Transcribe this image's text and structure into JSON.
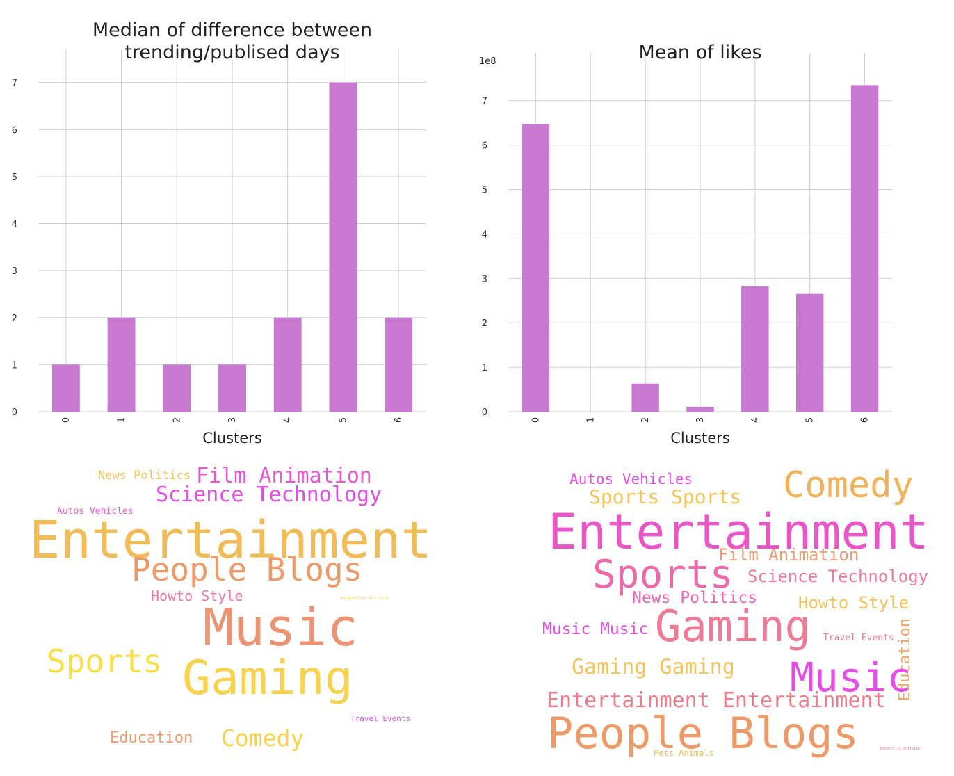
{
  "chart_data": [
    {
      "type": "bar",
      "title": "Median of difference between\ntrending/publised days",
      "xlabel": "Clusters",
      "ylabel": "",
      "categories": [
        "0",
        "1",
        "2",
        "3",
        "4",
        "5",
        "6"
      ],
      "values": [
        1,
        2,
        1,
        1,
        2,
        7,
        2
      ],
      "ylim": [
        0,
        7.35
      ],
      "yticks": [
        0,
        1,
        2,
        3,
        4,
        5,
        6,
        7
      ],
      "offset_label": "",
      "bar_color": "#c879d1",
      "grid": true
    },
    {
      "type": "bar",
      "title": "Mean of likes",
      "xlabel": "Clusters",
      "ylabel": "",
      "categories": [
        "0",
        "1",
        "2",
        "3",
        "4",
        "5",
        "6"
      ],
      "values": [
        6.47,
        0,
        0.63,
        0.11,
        2.82,
        2.65,
        7.35
      ],
      "ylim": [
        0,
        7.7
      ],
      "yticks": [
        0,
        1,
        2,
        3,
        4,
        5,
        6,
        7
      ],
      "offset_label": "1e8",
      "bar_color": "#c879d1",
      "grid": true
    }
  ],
  "wordclouds": [
    {
      "words": [
        {
          "text": "News Politics",
          "color": "#f6c25a"
        },
        {
          "text": "Film Animation",
          "color": "#e55ad3"
        },
        {
          "text": "Science Technology",
          "color": "#e64de6"
        },
        {
          "text": "Autos Vehicles",
          "color": "#ea5fd0"
        },
        {
          "text": "Entertainment",
          "color": "#f1bb55"
        },
        {
          "text": "People Blogs",
          "color": "#ee9a68"
        },
        {
          "text": "Howto Style",
          "color": "#ef7aa0"
        },
        {
          "text": "Nonprofits Activism",
          "color": "#f6cf4a"
        },
        {
          "text": "Music",
          "color": "#ed9371"
        },
        {
          "text": "Sports",
          "color": "#f8e04b"
        },
        {
          "text": "Gaming",
          "color": "#f8d24d"
        },
        {
          "text": "Travel Events",
          "color": "#e64de6"
        },
        {
          "text": "Education",
          "color": "#ef9a71"
        },
        {
          "text": "Comedy",
          "color": "#f8d24d"
        }
      ]
    },
    {
      "words": [
        {
          "text": "Autos Vehicles",
          "color": "#e64de6"
        },
        {
          "text": "Comedy",
          "color": "#f1b25a"
        },
        {
          "text": "Sports Sports",
          "color": "#f6c25a"
        },
        {
          "text": "Entertainment",
          "color": "#ea55c8"
        },
        {
          "text": "Film Animation",
          "color": "#ef9a71"
        },
        {
          "text": "Sports",
          "color": "#ec6aa8"
        },
        {
          "text": "Science Technology",
          "color": "#ef7a9a"
        },
        {
          "text": "News Politics",
          "color": "#ef66b4"
        },
        {
          "text": "Howto Style",
          "color": "#f6c25a"
        },
        {
          "text": "Music Music",
          "color": "#e64de6"
        },
        {
          "text": "Gaming",
          "color": "#ef7a96"
        },
        {
          "text": "Travel Events",
          "color": "#ef7a9a"
        },
        {
          "text": "Education",
          "color": "#f1a866"
        },
        {
          "text": "Gaming Gaming",
          "color": "#f6c25a"
        },
        {
          "text": "Music",
          "color": "#e64de6"
        },
        {
          "text": "Entertainment Entertainment",
          "color": "#ef7a88"
        },
        {
          "text": "People Blogs",
          "color": "#ee9a68"
        },
        {
          "text": "Pets Animals",
          "color": "#f1c25a"
        },
        {
          "text": "Nonprofits Activism",
          "color": "#ef7aa0"
        }
      ]
    }
  ]
}
